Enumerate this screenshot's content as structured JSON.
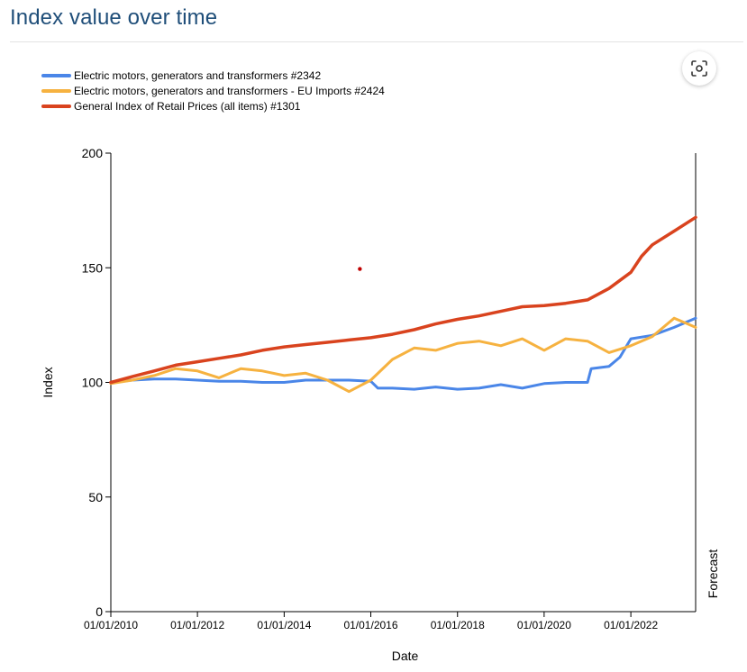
{
  "page": {
    "title": "Index value over time"
  },
  "icons": {
    "scan": "scan-icon"
  },
  "colors": {
    "title": "#1f4e79",
    "series_1": "#4a86e8",
    "series_2": "#f6b240",
    "series_3": "#d9431e"
  },
  "chart_data": {
    "type": "line",
    "xlabel": "Date",
    "ylabel": "Index",
    "ylim": [
      0,
      200
    ],
    "xlim": [
      "2010-01-01",
      "2023-07-01"
    ],
    "yticks": [
      0,
      50,
      100,
      150,
      200
    ],
    "xticks": [
      "01/01/2010",
      "01/01/2012",
      "01/01/2014",
      "01/01/2016",
      "01/01/2018",
      "01/01/2020",
      "01/01/2022"
    ],
    "forecast_label": "Forecast",
    "legend_position": "top-left",
    "grid": false,
    "series": [
      {
        "name": "Electric motors, generators and transformers #2342",
        "color": "#4a86e8",
        "points": [
          [
            "2010-01-01",
            100
          ],
          [
            "2010-07-01",
            101
          ],
          [
            "2011-01-01",
            101.5
          ],
          [
            "2011-07-01",
            101.5
          ],
          [
            "2012-01-01",
            101
          ],
          [
            "2012-07-01",
            100.5
          ],
          [
            "2013-01-01",
            100.5
          ],
          [
            "2013-07-01",
            100
          ],
          [
            "2014-01-01",
            100
          ],
          [
            "2014-07-01",
            101
          ],
          [
            "2015-01-01",
            101
          ],
          [
            "2015-07-01",
            101
          ],
          [
            "2016-01-01",
            100.5
          ],
          [
            "2016-03-01",
            97.5
          ],
          [
            "2016-07-01",
            97.5
          ],
          [
            "2017-01-01",
            97
          ],
          [
            "2017-07-01",
            98
          ],
          [
            "2018-01-01",
            97
          ],
          [
            "2018-07-01",
            97.5
          ],
          [
            "2019-01-01",
            99
          ],
          [
            "2019-07-01",
            97.5
          ],
          [
            "2020-01-01",
            99.5
          ],
          [
            "2020-07-01",
            100
          ],
          [
            "2021-01-01",
            100
          ],
          [
            "2021-02-01",
            106
          ],
          [
            "2021-07-01",
            107
          ],
          [
            "2021-10-01",
            111
          ],
          [
            "2022-01-01",
            119
          ],
          [
            "2022-07-01",
            120.5
          ],
          [
            "2023-01-01",
            124
          ],
          [
            "2023-07-01",
            128
          ]
        ]
      },
      {
        "name": "Electric motors, generators and transformers - EU Imports #2424",
        "color": "#f6b240",
        "points": [
          [
            "2010-01-01",
            99.5
          ],
          [
            "2010-07-01",
            101
          ],
          [
            "2011-01-01",
            103
          ],
          [
            "2011-07-01",
            106
          ],
          [
            "2012-01-01",
            105
          ],
          [
            "2012-07-01",
            102
          ],
          [
            "2013-01-01",
            106
          ],
          [
            "2013-07-01",
            105
          ],
          [
            "2014-01-01",
            103
          ],
          [
            "2014-07-01",
            104
          ],
          [
            "2015-01-01",
            101
          ],
          [
            "2015-07-01",
            96
          ],
          [
            "2016-01-01",
            101
          ],
          [
            "2016-07-01",
            110
          ],
          [
            "2017-01-01",
            115
          ],
          [
            "2017-07-01",
            114
          ],
          [
            "2018-01-01",
            117
          ],
          [
            "2018-07-01",
            118
          ],
          [
            "2019-01-01",
            116
          ],
          [
            "2019-07-01",
            119
          ],
          [
            "2020-01-01",
            114
          ],
          [
            "2020-07-01",
            119
          ],
          [
            "2021-01-01",
            118
          ],
          [
            "2021-07-01",
            113
          ],
          [
            "2022-01-01",
            116
          ],
          [
            "2022-07-01",
            120
          ],
          [
            "2023-01-01",
            128
          ],
          [
            "2023-07-01",
            124
          ]
        ]
      },
      {
        "name": "General Index of Retail Prices (all items) #1301",
        "color": "#d9431e",
        "points": [
          [
            "2010-01-01",
            100
          ],
          [
            "2010-07-01",
            102.5
          ],
          [
            "2011-01-01",
            105
          ],
          [
            "2011-07-01",
            107.5
          ],
          [
            "2012-01-01",
            109
          ],
          [
            "2012-07-01",
            110.5
          ],
          [
            "2013-01-01",
            112
          ],
          [
            "2013-07-01",
            114
          ],
          [
            "2014-01-01",
            115.5
          ],
          [
            "2014-07-01",
            116.5
          ],
          [
            "2015-01-01",
            117.5
          ],
          [
            "2015-07-01",
            118.5
          ],
          [
            "2016-01-01",
            119.5
          ],
          [
            "2016-07-01",
            121
          ],
          [
            "2017-01-01",
            123
          ],
          [
            "2017-07-01",
            125.5
          ],
          [
            "2018-01-01",
            127.5
          ],
          [
            "2018-07-01",
            129
          ],
          [
            "2019-01-01",
            131
          ],
          [
            "2019-07-01",
            133
          ],
          [
            "2020-01-01",
            133.5
          ],
          [
            "2020-07-01",
            134.5
          ],
          [
            "2021-01-01",
            136
          ],
          [
            "2021-07-01",
            141
          ],
          [
            "2022-01-01",
            148
          ],
          [
            "2022-04-01",
            155
          ],
          [
            "2022-07-01",
            160
          ],
          [
            "2023-01-01",
            166
          ],
          [
            "2023-07-01",
            172
          ]
        ]
      }
    ],
    "annotations": [
      {
        "type": "point",
        "x": "2015-10-01",
        "y": 149.5,
        "color": "#c00000"
      }
    ]
  }
}
